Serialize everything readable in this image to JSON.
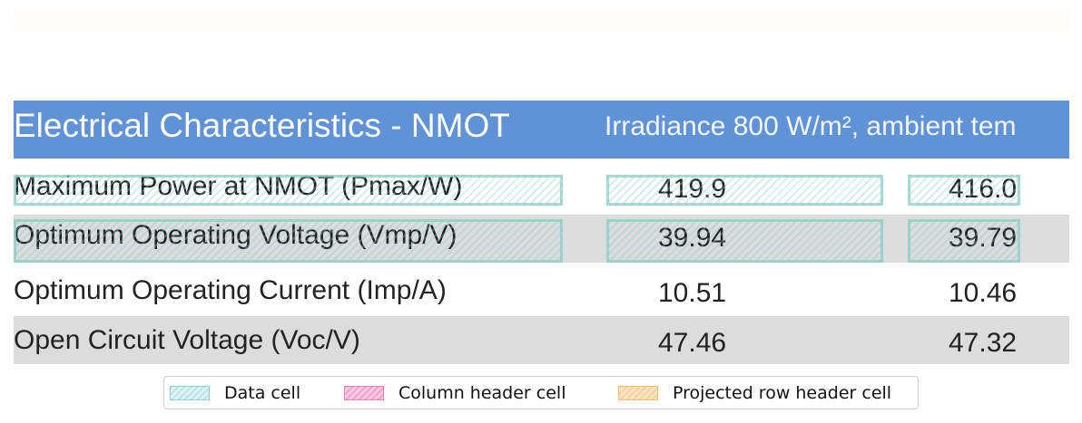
{
  "table": {
    "header": [
      "Electrical Characteristics - NMOT",
      "Irradiance 800 W/m², ambient tem"
    ],
    "rows": [
      [
        "Maximum Power at NMOT (Pmax/W)",
        "419.9",
        "416.0"
      ],
      [
        "Optimum Operating Voltage (Vmp/V)",
        "39.94",
        "39.79"
      ],
      [
        "Optimum Operating Current (Imp/A)",
        "10.51",
        "10.46"
      ],
      [
        "Open Circuit Voltage (Voc/V)",
        "47.46",
        "47.32"
      ]
    ]
  },
  "legend": [
    "Data cell",
    "Column header cell",
    "Projected row header cell"
  ]
}
